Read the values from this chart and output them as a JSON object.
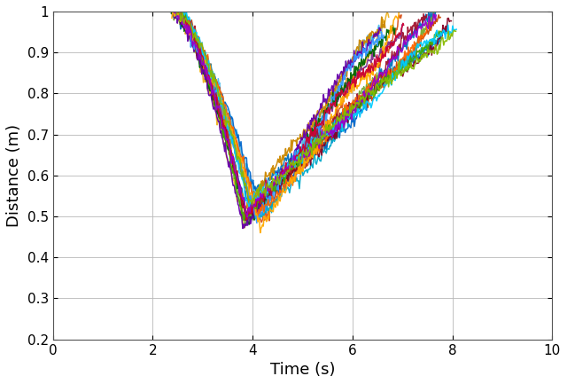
{
  "title": "",
  "xlabel": "Time (s)",
  "ylabel": "Distance (m)",
  "xlim": [
    0,
    10
  ],
  "ylim": [
    0.2,
    1.0
  ],
  "xticks": [
    0,
    2,
    4,
    6,
    8,
    10
  ],
  "yticks": [
    0.2,
    0.3,
    0.4,
    0.5,
    0.6,
    0.7,
    0.8,
    0.9,
    1.0
  ],
  "grid": true,
  "figsize": [
    6.4,
    4.33
  ],
  "dpi": 100,
  "background_color": "#ffffff",
  "line_colors": [
    "#0072BD",
    "#D95319",
    "#EDB120",
    "#7E2F8E",
    "#77AC30",
    "#4DBEEE",
    "#A2142F",
    "#0066CC",
    "#CC4400",
    "#CC8800",
    "#006600",
    "#00AACC",
    "#880022",
    "#6600AA",
    "#3399FF",
    "#FF6600",
    "#FFAA00",
    "#44AA00",
    "#00CCFF",
    "#CC0033",
    "#9900CC",
    "#88BB00"
  ],
  "n_trajectories": 22
}
